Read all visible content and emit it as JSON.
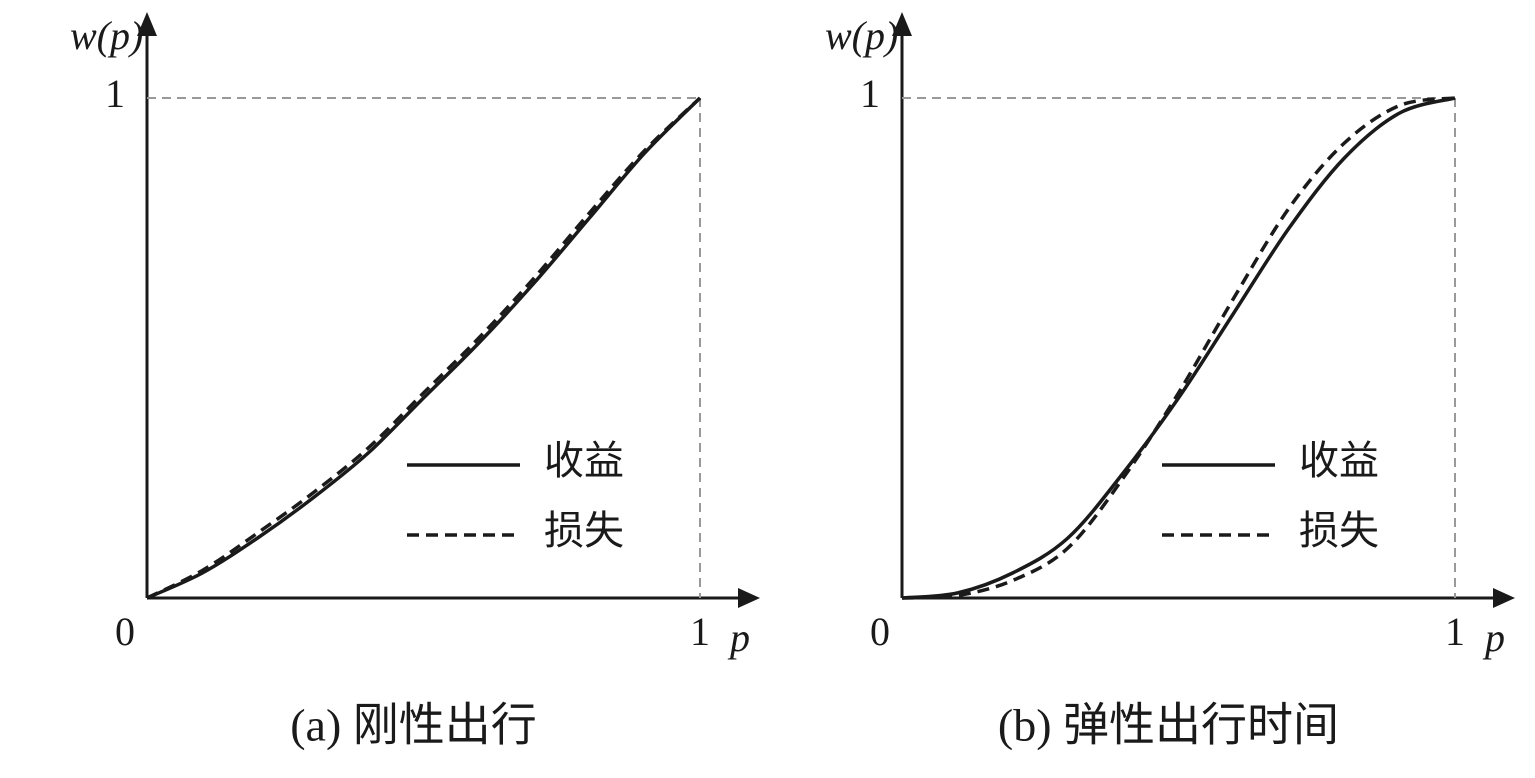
{
  "chart_data": [
    {
      "type": "line",
      "title": "(a) 刚性出行",
      "xlabel": "p",
      "ylabel": "w(p)",
      "x": [
        0,
        0.1,
        0.2,
        0.3,
        0.4,
        0.5,
        0.6,
        0.7,
        0.8,
        0.9,
        1
      ],
      "series": [
        {
          "name": "收益",
          "color": "#1a1a1a",
          "dashed": false,
          "values": [
            0,
            0.05,
            0.12,
            0.2,
            0.29,
            0.4,
            0.51,
            0.63,
            0.76,
            0.89,
            1
          ]
        },
        {
          "name": "损失",
          "color": "#1a1a1a",
          "dashed": true,
          "values": [
            0,
            0.055,
            0.13,
            0.21,
            0.3,
            0.41,
            0.52,
            0.64,
            0.77,
            0.895,
            1
          ]
        }
      ],
      "xlim": [
        0,
        1
      ],
      "ylim": [
        0,
        1
      ],
      "xticks": [
        0,
        1
      ],
      "yticks": [
        1
      ]
    },
    {
      "type": "line",
      "title": "(b) 弹性出行时间",
      "xlabel": "p",
      "ylabel": "w(p)",
      "x": [
        0,
        0.1,
        0.2,
        0.3,
        0.4,
        0.5,
        0.6,
        0.7,
        0.8,
        0.9,
        1
      ],
      "series": [
        {
          "name": "收益",
          "color": "#1a1a1a",
          "dashed": false,
          "values": [
            0,
            0.01,
            0.05,
            0.12,
            0.25,
            0.4,
            0.57,
            0.74,
            0.88,
            0.97,
            1
          ]
        },
        {
          "name": "损失",
          "color": "#1a1a1a",
          "dashed": true,
          "values": [
            0,
            0.005,
            0.035,
            0.1,
            0.24,
            0.41,
            0.6,
            0.78,
            0.91,
            0.985,
            1
          ]
        }
      ],
      "xlim": [
        0,
        1
      ],
      "ylim": [
        0,
        1
      ],
      "xticks": [
        0,
        1
      ],
      "yticks": [
        1
      ]
    }
  ]
}
